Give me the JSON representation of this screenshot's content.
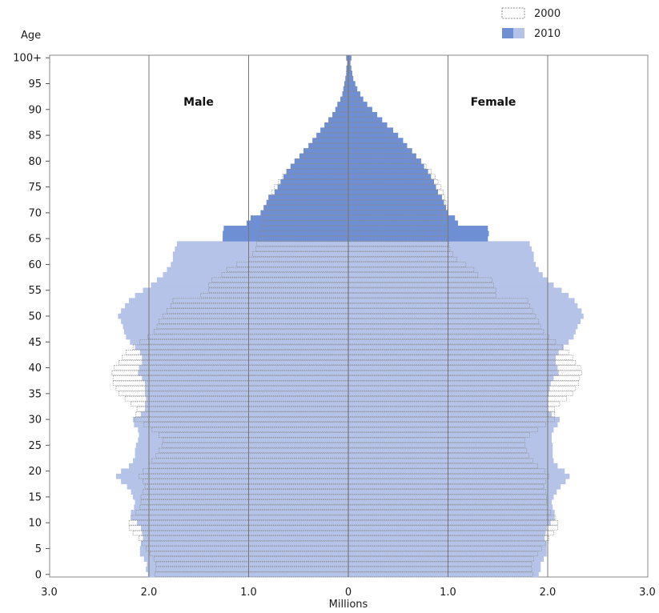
{
  "chart_data": {
    "type": "bar",
    "orientation": "horizontal-population-pyramid",
    "y_title": "Age",
    "x_title": "Millions",
    "side_labels": {
      "left": "Male",
      "right": "Female"
    },
    "x_ticks": [
      "3.0",
      "2.0",
      "1.0",
      "0",
      "1.0",
      "2.0",
      "3.0"
    ],
    "x_tick_values": [
      -3,
      -2,
      -1,
      0,
      1,
      2,
      3
    ],
    "y_ticks": [
      "0",
      "5",
      "10",
      "15",
      "20",
      "25",
      "30",
      "35",
      "40",
      "45",
      "50",
      "55",
      "60",
      "65",
      "70",
      "75",
      "80",
      "85",
      "90",
      "95",
      "100+"
    ],
    "y_tick_values": [
      0,
      5,
      10,
      15,
      20,
      25,
      30,
      35,
      40,
      45,
      50,
      55,
      60,
      65,
      70,
      75,
      80,
      85,
      90,
      95,
      100
    ],
    "xlim": [
      -3,
      3
    ],
    "ylim": [
      0,
      100
    ],
    "grid": "vertical lines at 1.0 intervals",
    "legend": {
      "position": "top-right",
      "entries": [
        "2000",
        "2010"
      ]
    },
    "colors": {
      "series_2010_main": "#b4c3e7",
      "series_2010_over65": "#6e8fd4",
      "series_2000_outline": "#8a8a8a",
      "grid": "#777777"
    },
    "ages": [
      0,
      1,
      2,
      3,
      4,
      5,
      6,
      7,
      8,
      9,
      10,
      11,
      12,
      13,
      14,
      15,
      16,
      17,
      18,
      19,
      20,
      21,
      22,
      23,
      24,
      25,
      26,
      27,
      28,
      29,
      30,
      31,
      32,
      33,
      34,
      35,
      36,
      37,
      38,
      39,
      40,
      41,
      42,
      43,
      44,
      45,
      46,
      47,
      48,
      49,
      50,
      51,
      52,
      53,
      54,
      55,
      56,
      57,
      58,
      59,
      60,
      61,
      62,
      63,
      64,
      65,
      66,
      67,
      68,
      69,
      70,
      71,
      72,
      73,
      74,
      75,
      76,
      77,
      78,
      79,
      80,
      81,
      82,
      83,
      84,
      85,
      86,
      87,
      88,
      89,
      90,
      91,
      92,
      93,
      94,
      95,
      96,
      97,
      98,
      99,
      100
    ],
    "series": [
      {
        "name": "2010",
        "male": [
          2.01,
          2.03,
          2.02,
          2.05,
          2.09,
          2.09,
          2.08,
          2.06,
          2.07,
          2.08,
          2.12,
          2.18,
          2.18,
          2.15,
          2.14,
          2.16,
          2.18,
          2.22,
          2.28,
          2.33,
          2.28,
          2.2,
          2.16,
          2.14,
          2.14,
          2.13,
          2.11,
          2.1,
          2.11,
          2.15,
          2.16,
          2.08,
          2.04,
          2.04,
          2.03,
          2.04,
          2.04,
          2.04,
          2.07,
          2.11,
          2.1,
          2.07,
          2.07,
          2.09,
          2.14,
          2.19,
          2.23,
          2.25,
          2.26,
          2.28,
          2.31,
          2.28,
          2.24,
          2.2,
          2.14,
          2.06,
          1.98,
          1.92,
          1.86,
          1.82,
          1.78,
          1.76,
          1.76,
          1.74,
          1.72,
          1.26,
          1.26,
          1.25,
          1.02,
          0.98,
          0.88,
          0.85,
          0.82,
          0.8,
          0.74,
          0.71,
          0.68,
          0.65,
          0.62,
          0.58,
          0.54,
          0.49,
          0.45,
          0.4,
          0.36,
          0.32,
          0.28,
          0.24,
          0.2,
          0.16,
          0.13,
          0.11,
          0.08,
          0.06,
          0.05,
          0.04,
          0.03,
          0.02,
          0.02,
          0.01,
          0.02
        ],
        "female": [
          1.91,
          1.93,
          1.93,
          1.96,
          1.99,
          1.99,
          1.99,
          1.97,
          1.98,
          1.99,
          2.03,
          2.07,
          2.07,
          2.05,
          2.04,
          2.06,
          2.09,
          2.13,
          2.18,
          2.22,
          2.17,
          2.1,
          2.06,
          2.05,
          2.05,
          2.05,
          2.04,
          2.04,
          2.06,
          2.1,
          2.12,
          2.04,
          2.0,
          2.0,
          2.0,
          2.01,
          2.02,
          2.03,
          2.06,
          2.11,
          2.1,
          2.08,
          2.08,
          2.11,
          2.16,
          2.21,
          2.26,
          2.28,
          2.3,
          2.33,
          2.36,
          2.34,
          2.3,
          2.27,
          2.21,
          2.14,
          2.06,
          2.0,
          1.95,
          1.91,
          1.88,
          1.86,
          1.86,
          1.84,
          1.82,
          1.4,
          1.41,
          1.4,
          1.1,
          1.07,
          1.0,
          0.98,
          0.96,
          0.94,
          0.9,
          0.88,
          0.86,
          0.83,
          0.8,
          0.76,
          0.73,
          0.68,
          0.64,
          0.59,
          0.55,
          0.5,
          0.45,
          0.39,
          0.34,
          0.29,
          0.24,
          0.19,
          0.15,
          0.12,
          0.09,
          0.07,
          0.05,
          0.04,
          0.03,
          0.02,
          0.03
        ]
      },
      {
        "name": "2000",
        "male": [
          1.94,
          1.93,
          1.93,
          1.95,
          1.99,
          2.03,
          2.07,
          2.1,
          2.16,
          2.2,
          2.2,
          2.18,
          2.13,
          2.09,
          2.08,
          2.08,
          2.06,
          2.04,
          2.06,
          2.1,
          2.06,
          2.0,
          1.97,
          1.93,
          1.9,
          1.87,
          1.86,
          1.9,
          1.97,
          2.05,
          2.14,
          2.13,
          2.12,
          2.18,
          2.24,
          2.3,
          2.33,
          2.36,
          2.36,
          2.37,
          2.35,
          2.3,
          2.27,
          2.23,
          2.16,
          2.09,
          2.01,
          1.95,
          1.92,
          1.9,
          1.86,
          1.82,
          1.78,
          1.76,
          1.48,
          1.4,
          1.4,
          1.37,
          1.27,
          1.22,
          1.12,
          1.0,
          0.96,
          0.93,
          0.92,
          0.9,
          0.9,
          0.88,
          0.87,
          0.86,
          0.85,
          0.83,
          0.82,
          0.8,
          0.77,
          0.74,
          0.7,
          0.66,
          0.62,
          0.57,
          0.52,
          0.47,
          0.43,
          0.38,
          0.33,
          0.28,
          0.24,
          0.2,
          0.16,
          0.13,
          0.1,
          0.08,
          0.06,
          0.05,
          0.04,
          0.03,
          0.02,
          0.02,
          0.01,
          0.01,
          0.02
        ],
        "female": [
          1.85,
          1.84,
          1.84,
          1.86,
          1.9,
          1.94,
          1.98,
          2.01,
          2.06,
          2.1,
          2.1,
          2.08,
          2.03,
          2.0,
          1.99,
          1.99,
          1.98,
          1.96,
          1.98,
          2.01,
          1.97,
          1.9,
          1.85,
          1.81,
          1.79,
          1.77,
          1.77,
          1.82,
          1.9,
          1.98,
          2.07,
          2.07,
          2.07,
          2.12,
          2.19,
          2.25,
          2.28,
          2.31,
          2.32,
          2.34,
          2.33,
          2.28,
          2.25,
          2.21,
          2.15,
          2.08,
          2.01,
          1.96,
          1.93,
          1.91,
          1.88,
          1.85,
          1.82,
          1.8,
          1.48,
          1.48,
          1.46,
          1.44,
          1.3,
          1.26,
          1.18,
          1.09,
          1.05,
          1.02,
          1.01,
          1.0,
          1.0,
          1.0,
          1.0,
          1.0,
          1.0,
          0.99,
          0.98,
          0.97,
          0.95,
          0.93,
          0.9,
          0.87,
          0.83,
          0.78,
          0.73,
          0.68,
          0.62,
          0.56,
          0.5,
          0.44,
          0.38,
          0.33,
          0.28,
          0.23,
          0.19,
          0.15,
          0.11,
          0.09,
          0.07,
          0.05,
          0.04,
          0.03,
          0.02,
          0.02,
          0.03
        ]
      }
    ]
  }
}
